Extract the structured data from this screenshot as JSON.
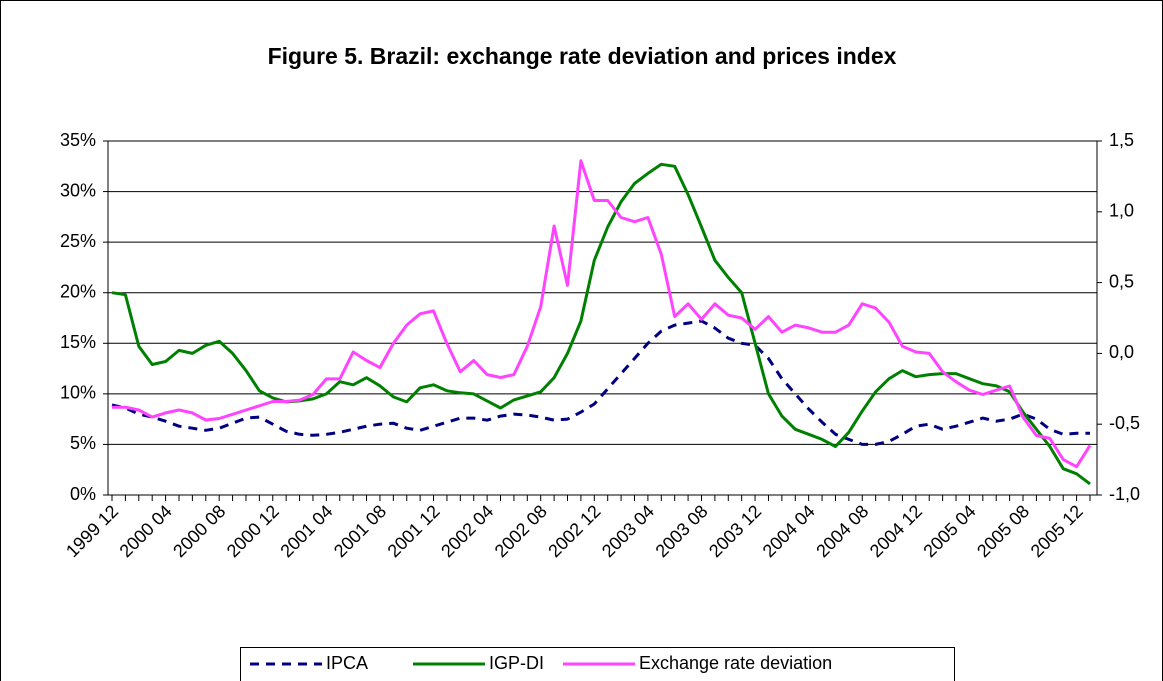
{
  "chart_data": {
    "type": "line",
    "title": "Figure 5. Brazil: exchange rate deviation and prices index",
    "categories": [
      "1999 12",
      null,
      null,
      null,
      "2000 04",
      null,
      null,
      null,
      "2000 08",
      null,
      null,
      null,
      "2000 12",
      null,
      null,
      null,
      "2001 04",
      null,
      null,
      null,
      "2001 08",
      null,
      null,
      null,
      "2001 12",
      null,
      null,
      null,
      "2002 04",
      null,
      null,
      null,
      "2002 08",
      null,
      null,
      null,
      "2002 12",
      null,
      null,
      null,
      "2003 04",
      null,
      null,
      null,
      "2003 08",
      null,
      null,
      null,
      "2003 12",
      null,
      null,
      null,
      "2004 04",
      null,
      null,
      null,
      "2004 08",
      null,
      null,
      null,
      "2004 12",
      null,
      null,
      null,
      "2005 04",
      null,
      null,
      null,
      "2005 08",
      null,
      null,
      null,
      "2005 12",
      null
    ],
    "series": [
      {
        "name": "IPCA",
        "color": "#000080",
        "dashed": true,
        "values": [
          8.9,
          8.6,
          8.0,
          7.7,
          7.3,
          6.8,
          6.6,
          6.4,
          6.6,
          7.1,
          7.6,
          7.7,
          7.0,
          6.3,
          6.0,
          5.9,
          6.0,
          6.2,
          6.5,
          6.8,
          7.0,
          7.1,
          6.6,
          6.4,
          6.8,
          7.2,
          7.6,
          7.6,
          7.4,
          7.8,
          8.0,
          7.9,
          7.7,
          7.4,
          7.5,
          8.2,
          9.0,
          10.5,
          12.0,
          13.5,
          15.0,
          16.2,
          16.8,
          17.0,
          17.2,
          16.5,
          15.5,
          15.0,
          14.8,
          13.5,
          11.5,
          10.0,
          8.5,
          7.2,
          6.0,
          5.5,
          5.0,
          5.0,
          5.3,
          6.0,
          6.8,
          7.0,
          6.5,
          6.8,
          7.2,
          7.6,
          7.3,
          7.5,
          8.0,
          7.5,
          6.5,
          6.0,
          6.1,
          6.1
        ]
      },
      {
        "name": "IGP-DI",
        "color": "#008000",
        "values": [
          20.0,
          19.8,
          14.7,
          12.9,
          13.2,
          14.3,
          14.0,
          14.8,
          15.2,
          14.0,
          12.3,
          10.3,
          9.6,
          9.2,
          9.3,
          9.5,
          10.0,
          11.2,
          10.9,
          11.6,
          10.8,
          9.7,
          9.2,
          10.6,
          10.9,
          10.3,
          10.1,
          10.0,
          9.3,
          8.6,
          9.4,
          9.8,
          10.2,
          11.6,
          14.0,
          17.2,
          23.2,
          26.5,
          29.0,
          30.8,
          31.8,
          32.7,
          32.5,
          29.7,
          26.5,
          23.2,
          21.5,
          20.0,
          15.0,
          10.0,
          7.8,
          6.5,
          6.0,
          5.5,
          4.8,
          6.2,
          8.3,
          10.2,
          11.5,
          12.3,
          11.7,
          11.9,
          12.0,
          12.0,
          11.5,
          11.0,
          10.8,
          10.2,
          8.2,
          6.5,
          4.8,
          2.6,
          2.1,
          1.1
        ]
      },
      {
        "name": "Exchange rate deviation",
        "color": "#ff44ff",
        "axis": "y2",
        "values": [
          -0.38,
          -0.38,
          -0.4,
          -0.45,
          -0.42,
          -0.4,
          -0.42,
          -0.47,
          -0.46,
          -0.43,
          -0.4,
          -0.37,
          -0.34,
          -0.34,
          -0.33,
          -0.29,
          -0.18,
          -0.18,
          0.01,
          -0.05,
          -0.1,
          0.07,
          0.2,
          0.28,
          0.3,
          0.07,
          -0.13,
          -0.05,
          -0.15,
          -0.17,
          -0.15,
          0.05,
          0.33,
          0.9,
          0.48,
          1.36,
          1.08,
          1.08,
          0.96,
          0.93,
          0.96,
          0.7,
          0.26,
          0.35,
          0.24,
          0.35,
          0.27,
          0.25,
          0.17,
          0.26,
          0.15,
          0.2,
          0.18,
          0.15,
          0.15,
          0.2,
          0.35,
          0.32,
          0.22,
          0.05,
          0.01,
          0.0,
          -0.13,
          -0.2,
          -0.26,
          -0.29,
          -0.26,
          -0.23,
          -0.45,
          -0.58,
          -0.6,
          -0.75,
          -0.8,
          -0.65
        ]
      }
    ],
    "ylim": [
      0,
      35
    ],
    "yticks": [
      {
        "value": 0,
        "label": "0%"
      },
      {
        "value": 5,
        "label": "5%"
      },
      {
        "value": 10,
        "label": "10%"
      },
      {
        "value": 15,
        "label": "15%"
      },
      {
        "value": 20,
        "label": "20%"
      },
      {
        "value": 25,
        "label": "25%"
      },
      {
        "value": 30,
        "label": "30%"
      },
      {
        "value": 35,
        "label": "35%"
      }
    ],
    "y2lim": [
      -1,
      1.5
    ],
    "y2ticks": [
      {
        "value": -1,
        "label": "-1,0"
      },
      {
        "value": -0.5,
        "label": "-0,5"
      },
      {
        "value": 0,
        "label": "0,0"
      },
      {
        "value": 0.5,
        "label": "0,5"
      },
      {
        "value": 1,
        "label": "1,0"
      },
      {
        "value": 1.5,
        "label": "1,5"
      }
    ],
    "grid": true,
    "legend": "bottom"
  }
}
